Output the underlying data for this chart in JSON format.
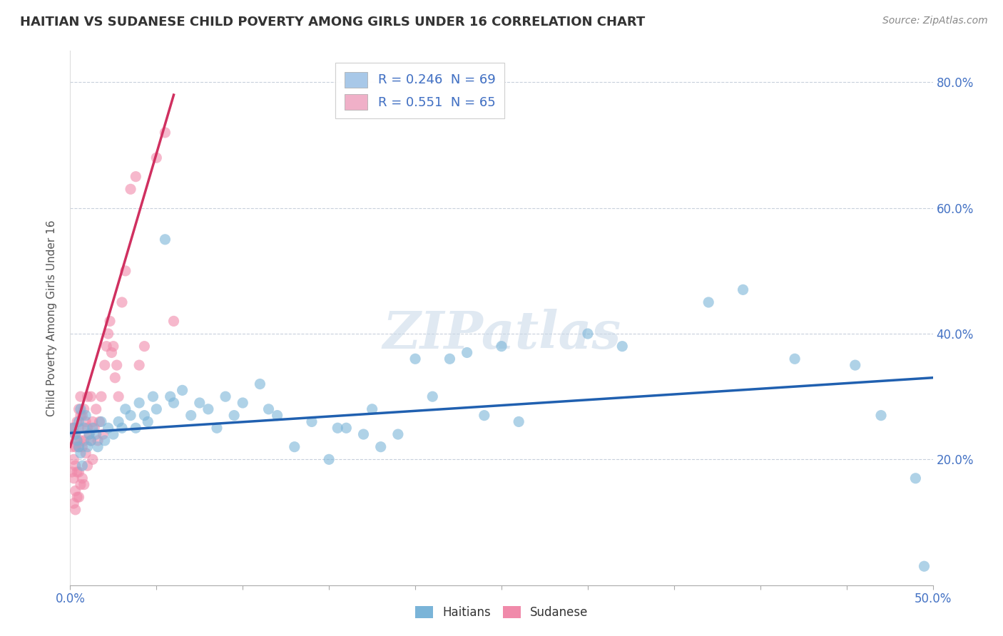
{
  "title": "HAITIAN VS SUDANESE CHILD POVERTY AMONG GIRLS UNDER 16 CORRELATION CHART",
  "source": "Source: ZipAtlas.com",
  "ylabel": "Child Poverty Among Girls Under 16",
  "xmin": 0.0,
  "xmax": 0.5,
  "ymin": 0.0,
  "ymax": 0.85,
  "watermark_text": "ZIPatlas",
  "legend_r_n": [
    {
      "label": "R = 0.246  N = 69",
      "patch_color": "#a8c8e8"
    },
    {
      "label": "R = 0.551  N = 65",
      "patch_color": "#f0b0c8"
    }
  ],
  "haitians_color": "#7ab4d8",
  "sudanese_color": "#f08aaa",
  "haitians_line_color": "#2060b0",
  "sudanese_line_color": "#d03060",
  "haitians_x": [
    0.002,
    0.003,
    0.004,
    0.005,
    0.005,
    0.006,
    0.006,
    0.007,
    0.008,
    0.009,
    0.01,
    0.011,
    0.012,
    0.013,
    0.015,
    0.016,
    0.018,
    0.02,
    0.022,
    0.025,
    0.028,
    0.03,
    0.032,
    0.035,
    0.038,
    0.04,
    0.043,
    0.045,
    0.048,
    0.05,
    0.055,
    0.058,
    0.06,
    0.065,
    0.07,
    0.075,
    0.08,
    0.085,
    0.09,
    0.095,
    0.1,
    0.11,
    0.115,
    0.12,
    0.13,
    0.14,
    0.15,
    0.155,
    0.16,
    0.17,
    0.175,
    0.18,
    0.19,
    0.2,
    0.21,
    0.22,
    0.23,
    0.24,
    0.25,
    0.26,
    0.3,
    0.32,
    0.37,
    0.39,
    0.42,
    0.455,
    0.47,
    0.49,
    0.495
  ],
  "haitians_y": [
    0.25,
    0.24,
    0.23,
    0.22,
    0.26,
    0.21,
    0.28,
    0.19,
    0.25,
    0.27,
    0.22,
    0.24,
    0.23,
    0.25,
    0.24,
    0.22,
    0.26,
    0.23,
    0.25,
    0.24,
    0.26,
    0.25,
    0.28,
    0.27,
    0.25,
    0.29,
    0.27,
    0.26,
    0.3,
    0.28,
    0.55,
    0.3,
    0.29,
    0.31,
    0.27,
    0.29,
    0.28,
    0.25,
    0.3,
    0.27,
    0.29,
    0.32,
    0.28,
    0.27,
    0.22,
    0.26,
    0.2,
    0.25,
    0.25,
    0.24,
    0.28,
    0.22,
    0.24,
    0.36,
    0.3,
    0.36,
    0.37,
    0.27,
    0.38,
    0.26,
    0.4,
    0.38,
    0.45,
    0.47,
    0.36,
    0.35,
    0.27,
    0.17,
    0.03
  ],
  "sudanese_x": [
    0.001,
    0.001,
    0.001,
    0.002,
    0.002,
    0.002,
    0.002,
    0.003,
    0.003,
    0.003,
    0.003,
    0.003,
    0.004,
    0.004,
    0.004,
    0.004,
    0.005,
    0.005,
    0.005,
    0.005,
    0.005,
    0.006,
    0.006,
    0.006,
    0.006,
    0.007,
    0.007,
    0.007,
    0.008,
    0.008,
    0.008,
    0.009,
    0.009,
    0.01,
    0.01,
    0.01,
    0.011,
    0.012,
    0.012,
    0.013,
    0.013,
    0.014,
    0.015,
    0.016,
    0.017,
    0.018,
    0.019,
    0.02,
    0.021,
    0.022,
    0.023,
    0.024,
    0.025,
    0.026,
    0.027,
    0.028,
    0.03,
    0.032,
    0.035,
    0.038,
    0.04,
    0.043,
    0.05,
    0.055,
    0.06
  ],
  "sudanese_y": [
    0.25,
    0.22,
    0.18,
    0.25,
    0.2,
    0.17,
    0.13,
    0.24,
    0.22,
    0.19,
    0.15,
    0.12,
    0.26,
    0.23,
    0.18,
    0.14,
    0.28,
    0.25,
    0.22,
    0.18,
    0.14,
    0.3,
    0.27,
    0.23,
    0.16,
    0.27,
    0.22,
    0.17,
    0.28,
    0.23,
    0.16,
    0.26,
    0.21,
    0.3,
    0.25,
    0.19,
    0.24,
    0.3,
    0.23,
    0.26,
    0.2,
    0.25,
    0.28,
    0.23,
    0.26,
    0.3,
    0.24,
    0.35,
    0.38,
    0.4,
    0.42,
    0.37,
    0.38,
    0.33,
    0.35,
    0.3,
    0.45,
    0.5,
    0.63,
    0.65,
    0.35,
    0.38,
    0.68,
    0.72,
    0.42
  ],
  "haitians_line_x": [
    0.0,
    0.5
  ],
  "haitians_line_y": [
    0.242,
    0.33
  ],
  "sudanese_line_x": [
    0.0,
    0.06
  ],
  "sudanese_line_y": [
    0.22,
    0.78
  ]
}
